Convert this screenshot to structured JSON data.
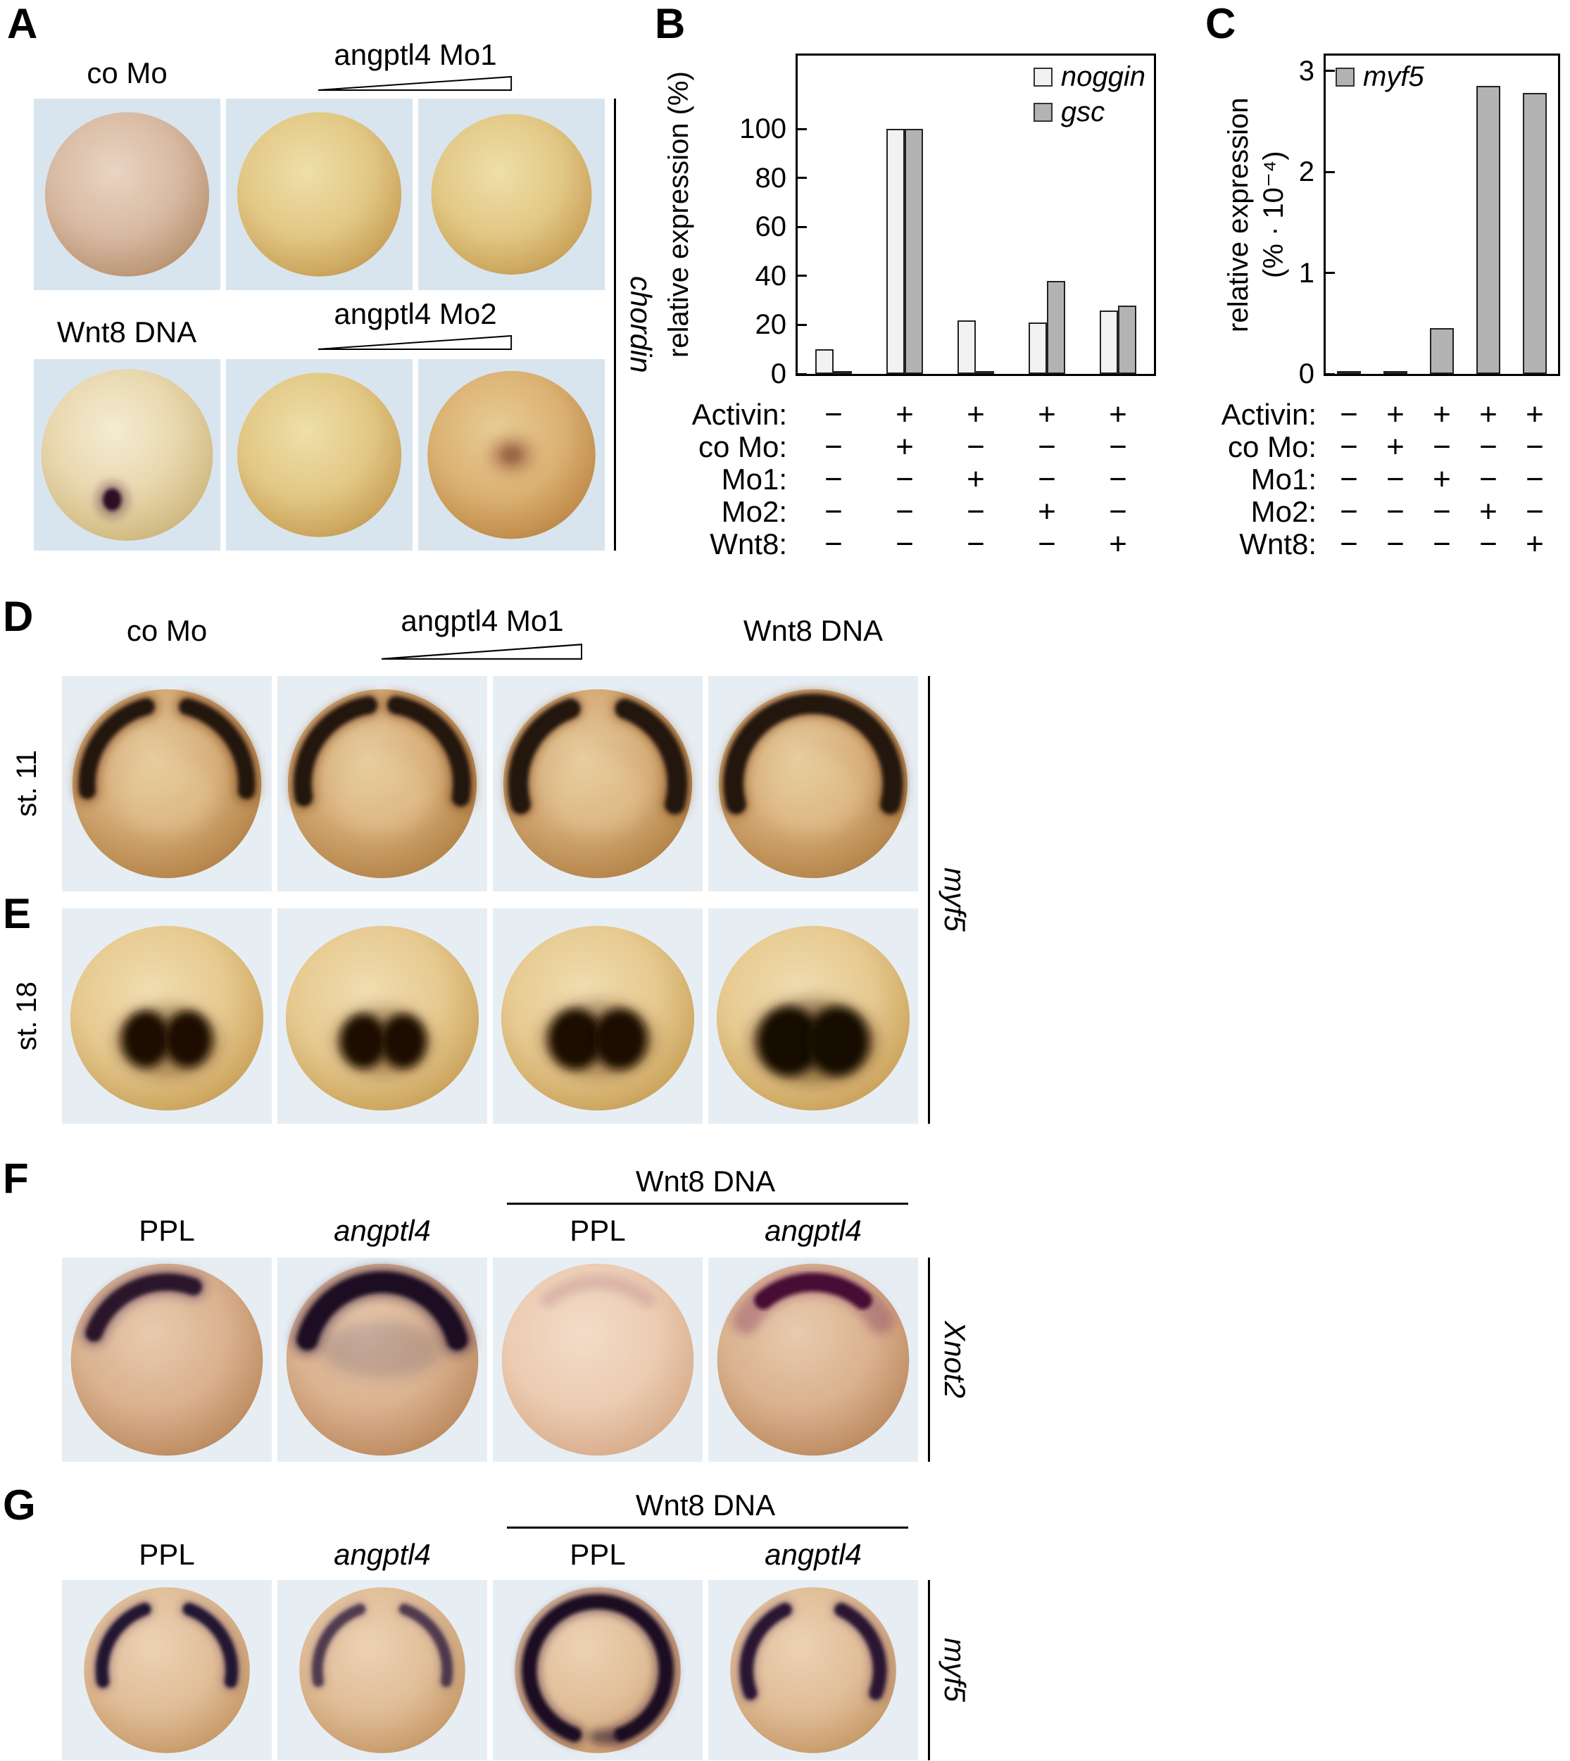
{
  "panelA": {
    "letter": "A",
    "col1_label": "co Mo",
    "ramp1_label": "angptl4 Mo1",
    "row2_label": "Wnt8 DNA",
    "ramp2_label": "angptl4 Mo2",
    "gene": "chordin"
  },
  "panelB": {
    "letter": "B",
    "ylabel": "relative expression (%)"
  },
  "panelC": {
    "letter": "C",
    "ylabel_line1": "relative expression",
    "ylabel_line2": "(% · 10⁻⁴)"
  },
  "panelD": {
    "letter": "D",
    "stage": "st. 11",
    "col1_label": "co Mo",
    "ramp_label": "angptl4 Mo1",
    "col4_label": "Wnt8 DNA"
  },
  "panelE": {
    "letter": "E",
    "stage": "st. 18"
  },
  "panelDE_gene": "myf5",
  "panelF": {
    "letter": "F",
    "col1_label": "PPL",
    "col2_label": "angptl4",
    "group_label": "Wnt8 DNA",
    "col3_label": "PPL",
    "col4_label": "angptl4",
    "gene": "Xnot2"
  },
  "panelG": {
    "letter": "G",
    "col1_label": "PPL",
    "col2_label": "angptl4",
    "group_label": "Wnt8 DNA",
    "col3_label": "PPL",
    "col4_label": "angptl4",
    "gene": "myf5"
  },
  "treatments": {
    "rows": [
      {
        "label": "Activin:",
        "values": [
          "−",
          "+",
          "+",
          "+",
          "+"
        ]
      },
      {
        "label": "co Mo:",
        "values": [
          "−",
          "+",
          "−",
          "−",
          "−"
        ]
      },
      {
        "label": "Mo1:",
        "values": [
          "−",
          "−",
          "+",
          "−",
          "−"
        ]
      },
      {
        "label": "Mo2:",
        "values": [
          "−",
          "−",
          "−",
          "+",
          "−"
        ]
      },
      {
        "label": "Wnt8:",
        "values": [
          "−",
          "−",
          "−",
          "−",
          "+"
        ]
      }
    ]
  },
  "chart_data": [
    {
      "id": "B",
      "type": "bar",
      "ylabel": "relative expression (%)",
      "categories": [
        "control (all −)",
        "Activin + co Mo",
        "Activin + Mo1",
        "Activin + Mo2",
        "Activin + Wnt8"
      ],
      "series": [
        {
          "name": "noggin",
          "color": "#f2f2f2",
          "values": [
            10,
            100,
            22,
            21,
            26
          ]
        },
        {
          "name": "gsc",
          "color": "#b3b3b3",
          "values": [
            1,
            100,
            1,
            38,
            28
          ]
        }
      ],
      "yticks": [
        0,
        20,
        40,
        60,
        80,
        100
      ],
      "ylim": [
        0,
        130
      ],
      "legend_position": "top-right",
      "grid": false
    },
    {
      "id": "C",
      "type": "bar",
      "ylabel": "relative expression (% · 10⁻⁴)",
      "categories": [
        "control (all −)",
        "Activin + co Mo",
        "Activin + Mo1",
        "Activin + Mo2",
        "Activin + Wnt8"
      ],
      "series": [
        {
          "name": "myf5",
          "color": "#b3b3b3",
          "values": [
            0.02,
            0.02,
            0.45,
            2.85,
            2.78
          ]
        }
      ],
      "yticks": [
        0,
        1,
        2,
        3
      ],
      "ylim": [
        0,
        3.15
      ],
      "legend_position": "top-left",
      "grid": false
    }
  ]
}
